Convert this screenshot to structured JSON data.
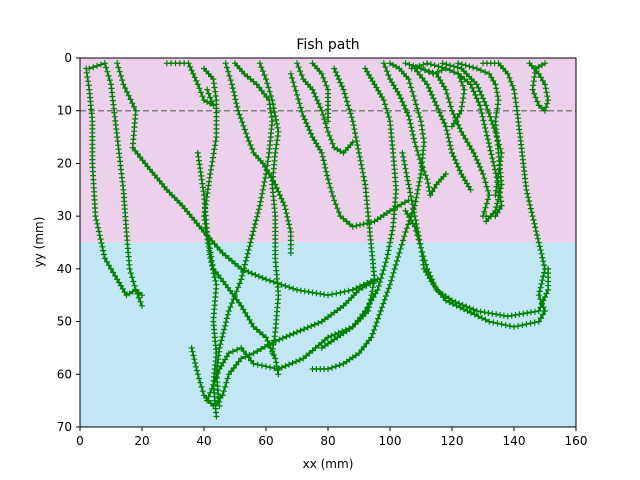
{
  "chart_data": {
    "type": "line",
    "title": "Fish path",
    "xlabel": "xx (mm)",
    "ylabel": "yy (mm)",
    "xlim": [
      0,
      160
    ],
    "ylim": [
      70,
      0
    ],
    "y_inverted": true,
    "xticks": [
      0,
      20,
      40,
      60,
      80,
      100,
      120,
      140,
      160
    ],
    "yticks": [
      0,
      10,
      20,
      30,
      40,
      50,
      60,
      70
    ],
    "regions": [
      {
        "name": "upper-zone",
        "y_from": 0,
        "y_to": 35,
        "color": "#ecd0ec"
      },
      {
        "name": "lower-zone",
        "y_from": 35,
        "y_to": 70,
        "color": "#c2e6f4"
      }
    ],
    "reference_line": {
      "y": 10,
      "style": "dashed",
      "color": "#808080"
    },
    "marker": "+",
    "colors": {
      "path": "#008000",
      "axes": "#000000"
    },
    "series": [
      {
        "values": [
          [
            2,
            2
          ],
          [
            3,
            6
          ],
          [
            4,
            12
          ],
          [
            4,
            20
          ],
          [
            5,
            30
          ],
          [
            8,
            38
          ],
          [
            12,
            42
          ],
          [
            15,
            45
          ],
          [
            18,
            44
          ],
          [
            20,
            45
          ]
        ]
      },
      {
        "values": [
          [
            3,
            2
          ],
          [
            8,
            1
          ],
          [
            10,
            5
          ],
          [
            12,
            15
          ],
          [
            14,
            25
          ],
          [
            15,
            33
          ],
          [
            16,
            40
          ],
          [
            18,
            44
          ],
          [
            20,
            47
          ]
        ]
      },
      {
        "values": [
          [
            12,
            1
          ],
          [
            14,
            5
          ],
          [
            18,
            10
          ],
          [
            17,
            17
          ],
          [
            21,
            20
          ],
          [
            28,
            25
          ],
          [
            33,
            28
          ],
          [
            40,
            33
          ],
          [
            46,
            37
          ],
          [
            52,
            40
          ],
          [
            60,
            42
          ],
          [
            70,
            44
          ],
          [
            80,
            45
          ],
          [
            88,
            44
          ],
          [
            95,
            42
          ]
        ]
      },
      {
        "values": [
          [
            28,
            1
          ],
          [
            35,
            1
          ],
          [
            38,
            5
          ],
          [
            40,
            8
          ],
          [
            43,
            9
          ],
          [
            41,
            6
          ]
        ]
      },
      {
        "values": [
          [
            40,
            2
          ],
          [
            43,
            4
          ],
          [
            44,
            8
          ],
          [
            44,
            15
          ],
          [
            42,
            22
          ],
          [
            40,
            30
          ],
          [
            42,
            38
          ],
          [
            44,
            43
          ],
          [
            43,
            50
          ],
          [
            44,
            56
          ],
          [
            43,
            62
          ],
          [
            44,
            68
          ]
        ]
      },
      {
        "values": [
          [
            38,
            18
          ],
          [
            40,
            26
          ],
          [
            41,
            33
          ],
          [
            43,
            40
          ],
          [
            47,
            43
          ],
          [
            52,
            47
          ],
          [
            56,
            51
          ],
          [
            60,
            53
          ],
          [
            63,
            57
          ],
          [
            64,
            60
          ]
        ]
      },
      {
        "values": [
          [
            47,
            1
          ],
          [
            49,
            5
          ],
          [
            51,
            10
          ],
          [
            54,
            15
          ],
          [
            56,
            18
          ],
          [
            59,
            20
          ],
          [
            63,
            24
          ],
          [
            66,
            28
          ],
          [
            68,
            33
          ],
          [
            68,
            37
          ]
        ]
      },
      {
        "values": [
          [
            50,
            1
          ],
          [
            53,
            3
          ],
          [
            57,
            5
          ],
          [
            61,
            8
          ],
          [
            62,
            12
          ],
          [
            61,
            18
          ],
          [
            60,
            22
          ],
          [
            58,
            28
          ],
          [
            55,
            35
          ],
          [
            52,
            42
          ],
          [
            48,
            48
          ],
          [
            45,
            55
          ],
          [
            44,
            60
          ],
          [
            45,
            66
          ]
        ]
      },
      {
        "values": [
          [
            58,
            1
          ],
          [
            60,
            4
          ],
          [
            62,
            8
          ],
          [
            64,
            14
          ],
          [
            63,
            18
          ],
          [
            62,
            24
          ],
          [
            63,
            30
          ],
          [
            63,
            38
          ],
          [
            64,
            45
          ],
          [
            63,
            52
          ],
          [
            62,
            56
          ]
        ]
      },
      {
        "values": [
          [
            68,
            3
          ],
          [
            70,
            7
          ],
          [
            72,
            11
          ],
          [
            75,
            15
          ],
          [
            78,
            18
          ],
          [
            80,
            23
          ],
          [
            82,
            27
          ],
          [
            84,
            30
          ],
          [
            88,
            32
          ],
          [
            95,
            31
          ],
          [
            100,
            29
          ],
          [
            106,
            27
          ]
        ]
      },
      {
        "values": [
          [
            70,
            1
          ],
          [
            72,
            4
          ],
          [
            75,
            6
          ],
          [
            78,
            10
          ],
          [
            80,
            14
          ],
          [
            82,
            17
          ],
          [
            85,
            18
          ],
          [
            88,
            16
          ]
        ]
      },
      {
        "values": [
          [
            75,
            1
          ],
          [
            78,
            3
          ],
          [
            80,
            6
          ],
          [
            80,
            12
          ]
        ]
      },
      {
        "values": [
          [
            82,
            2
          ],
          [
            85,
            6
          ],
          [
            88,
            12
          ],
          [
            90,
            18
          ],
          [
            92,
            24
          ],
          [
            93,
            30
          ],
          [
            94,
            36
          ],
          [
            95,
            42
          ],
          [
            93,
            48
          ],
          [
            88,
            51
          ],
          [
            80,
            53
          ],
          [
            72,
            57
          ],
          [
            64,
            59
          ],
          [
            56,
            58
          ],
          [
            52,
            55
          ],
          [
            48,
            56
          ],
          [
            45,
            59
          ],
          [
            43,
            62
          ],
          [
            41,
            65
          ]
        ]
      },
      {
        "values": [
          [
            92,
            2
          ],
          [
            95,
            5
          ],
          [
            98,
            8
          ],
          [
            100,
            12
          ],
          [
            101,
            18
          ],
          [
            102,
            25
          ],
          [
            101,
            32
          ],
          [
            99,
            38
          ],
          [
            96,
            44
          ],
          [
            92,
            48
          ],
          [
            88,
            51
          ],
          [
            83,
            53
          ],
          [
            78,
            55
          ]
        ]
      },
      {
        "values": [
          [
            98,
            1
          ],
          [
            100,
            4
          ],
          [
            103,
            7
          ],
          [
            106,
            11
          ],
          [
            108,
            16
          ],
          [
            110,
            20
          ],
          [
            112,
            23
          ],
          [
            113,
            26
          ],
          [
            115,
            24
          ],
          [
            118,
            22
          ]
        ]
      },
      {
        "values": [
          [
            100,
            1
          ],
          [
            103,
            2
          ],
          [
            106,
            4
          ],
          [
            108,
            8
          ],
          [
            110,
            12
          ],
          [
            111,
            16
          ],
          [
            110,
            22
          ],
          [
            108,
            28
          ],
          [
            105,
            33
          ],
          [
            103,
            37
          ],
          [
            100,
            43
          ],
          [
            97,
            48
          ],
          [
            94,
            53
          ],
          [
            90,
            56
          ],
          [
            85,
            58
          ],
          [
            80,
            59
          ],
          [
            75,
            59
          ]
        ]
      },
      {
        "values": [
          [
            105,
            1
          ],
          [
            110,
            2
          ],
          [
            115,
            3
          ],
          [
            118,
            6
          ],
          [
            120,
            10
          ],
          [
            123,
            14
          ],
          [
            127,
            18
          ],
          [
            130,
            22
          ],
          [
            132,
            26
          ],
          [
            130,
            30
          ]
        ]
      },
      {
        "values": [
          [
            108,
            2
          ],
          [
            112,
            5
          ],
          [
            115,
            9
          ],
          [
            118,
            13
          ],
          [
            120,
            18
          ],
          [
            123,
            22
          ],
          [
            126,
            25
          ]
        ]
      },
      {
        "values": [
          [
            110,
            2
          ],
          [
            114,
            3
          ],
          [
            118,
            2
          ],
          [
            122,
            3
          ],
          [
            126,
            5
          ],
          [
            129,
            9
          ],
          [
            131,
            14
          ],
          [
            133,
            19
          ],
          [
            135,
            24
          ],
          [
            136,
            28
          ],
          [
            134,
            30
          ],
          [
            131,
            30
          ]
        ]
      },
      {
        "values": [
          [
            117,
            1
          ],
          [
            123,
            2
          ],
          [
            128,
            5
          ],
          [
            131,
            9
          ],
          [
            134,
            14
          ],
          [
            136,
            18
          ],
          [
            135,
            22
          ],
          [
            134,
            26
          ]
        ]
      },
      {
        "values": [
          [
            122,
            1
          ],
          [
            128,
            2
          ],
          [
            132,
            3
          ],
          [
            134,
            5
          ],
          [
            135,
            8
          ],
          [
            134,
            12
          ],
          [
            135,
            18
          ],
          [
            136,
            24
          ],
          [
            134,
            29
          ],
          [
            131,
            31
          ]
        ]
      },
      {
        "values": [
          [
            130,
            1
          ],
          [
            135,
            1
          ],
          [
            138,
            3
          ],
          [
            140,
            6
          ],
          [
            141,
            10
          ],
          [
            142,
            15
          ],
          [
            143,
            20
          ],
          [
            144,
            25
          ],
          [
            146,
            30
          ],
          [
            148,
            35
          ],
          [
            150,
            40
          ],
          [
            148,
            45
          ],
          [
            150,
            48
          ],
          [
            148,
            50
          ],
          [
            140,
            51
          ],
          [
            132,
            50
          ],
          [
            125,
            48
          ],
          [
            118,
            46
          ],
          [
            114,
            43
          ],
          [
            111,
            40
          ],
          [
            110,
            36
          ],
          [
            108,
            32
          ],
          [
            105,
            29
          ]
        ]
      },
      {
        "values": [
          [
            145,
            1
          ],
          [
            148,
            3
          ],
          [
            150,
            5
          ],
          [
            151,
            8
          ],
          [
            150,
            10
          ],
          [
            148,
            9
          ],
          [
            146,
            6
          ],
          [
            147,
            2
          ],
          [
            150,
            1
          ]
        ]
      },
      {
        "values": [
          [
            107,
            2
          ],
          [
            112,
            1
          ],
          [
            118,
            2
          ],
          [
            122,
            3
          ],
          [
            124,
            6
          ],
          [
            123,
            10
          ],
          [
            120,
            13
          ]
        ]
      },
      {
        "values": [
          [
            104,
            18
          ],
          [
            106,
            24
          ],
          [
            108,
            30
          ],
          [
            110,
            36
          ],
          [
            112,
            40
          ],
          [
            115,
            44
          ],
          [
            120,
            46
          ],
          [
            128,
            48
          ],
          [
            138,
            49
          ],
          [
            148,
            48
          ],
          [
            151,
            44
          ],
          [
            151,
            40
          ]
        ]
      },
      {
        "values": [
          [
            36,
            55
          ],
          [
            38,
            60
          ],
          [
            40,
            64
          ],
          [
            43,
            66
          ],
          [
            46,
            64
          ],
          [
            48,
            60
          ],
          [
            52,
            57
          ],
          [
            56,
            56
          ],
          [
            62,
            54
          ],
          [
            70,
            52
          ],
          [
            78,
            50
          ],
          [
            85,
            47
          ],
          [
            90,
            44
          ],
          [
            96,
            42
          ]
        ]
      }
    ]
  }
}
